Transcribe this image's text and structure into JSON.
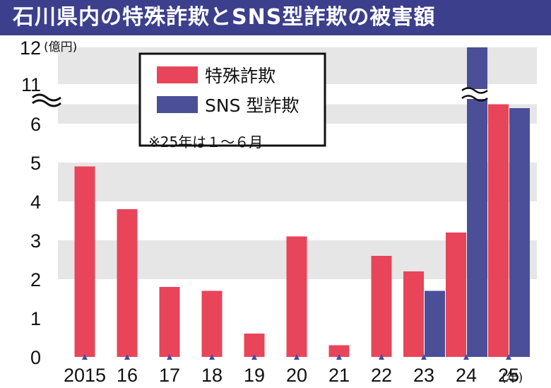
{
  "title": "石川県内の特殊詐欺とSNS型詐欺の被害額",
  "colors": {
    "title_bg": "#3b3f8c",
    "tokushu": "#e8455a",
    "sns": "#4b4f98",
    "band": "#e6e6e6",
    "text": "#111111",
    "tick_marker": "#3e4fa8"
  },
  "chart_data": {
    "type": "bar",
    "ylabel_unit": "(億円)",
    "xlabel_unit": "(年)",
    "categories": [
      "2015",
      "16",
      "17",
      "18",
      "19",
      "20",
      "21",
      "22",
      "23",
      "24",
      "25"
    ],
    "y_ticks": [
      "0",
      "1",
      "2",
      "3",
      "4",
      "5",
      "6",
      "11",
      "12"
    ],
    "axis_break": {
      "from": 6.5,
      "to": 11
    },
    "ylim": [
      0,
      12
    ],
    "grid": "alternating horizontal bands",
    "legend_position": "top-left",
    "note": "※25年は１～６月",
    "series": [
      {
        "name": "特殊詐欺",
        "values": [
          4.9,
          3.8,
          1.8,
          1.7,
          0.6,
          3.1,
          0.3,
          2.6,
          2.2,
          3.2,
          6.5
        ]
      },
      {
        "name": "SNS 型詐欺",
        "values": [
          null,
          null,
          null,
          null,
          null,
          null,
          null,
          null,
          1.7,
          12.0,
          6.4
        ]
      }
    ]
  }
}
